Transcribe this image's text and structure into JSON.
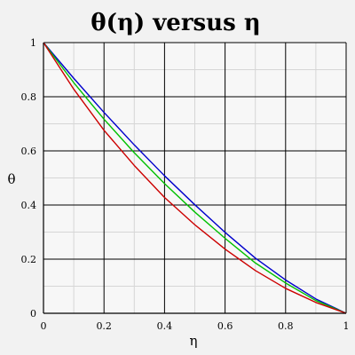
{
  "chart_data": {
    "type": "line",
    "title": "θ(η) versus η",
    "xlabel": "η",
    "ylabel": "θ",
    "xlim": [
      0,
      1
    ],
    "ylim": [
      0,
      1
    ],
    "xticks": [
      "0",
      "0.2",
      "0.4",
      "0.6",
      "0.8",
      "1"
    ],
    "yticks": [
      "0",
      "0.2",
      "0.4",
      "0.6",
      "0.8",
      "1"
    ],
    "grid": true,
    "x": [
      0,
      0.1,
      0.2,
      0.3,
      0.4,
      0.5,
      0.6,
      0.7,
      0.8,
      0.9,
      1.0
    ],
    "series": [
      {
        "color": "#0000cc",
        "values": [
          1.0,
          0.868,
          0.742,
          0.622,
          0.508,
          0.401,
          0.299,
          0.204,
          0.123,
          0.053,
          0.0
        ]
      },
      {
        "color": "#00c000",
        "values": [
          1.0,
          0.852,
          0.717,
          0.593,
          0.479,
          0.374,
          0.277,
          0.186,
          0.112,
          0.047,
          0.0
        ]
      },
      {
        "color": "#cc0000",
        "values": [
          1.0,
          0.828,
          0.676,
          0.546,
          0.428,
          0.327,
          0.237,
          0.158,
          0.092,
          0.04,
          0.0
        ]
      }
    ]
  }
}
